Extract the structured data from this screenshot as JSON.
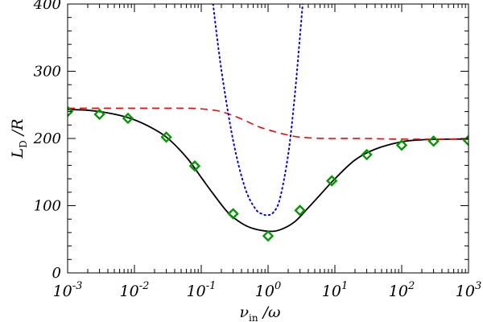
{
  "chart_data": {
    "type": "line",
    "x_scale": "log",
    "xlim": [
      0.001,
      1000
    ],
    "ylim": [
      0,
      400
    ],
    "x_ticks": [
      0.001,
      0.01,
      0.1,
      1,
      10,
      100,
      1000
    ],
    "x_tick_labels": [
      {
        "base": "10",
        "exp": "-3"
      },
      {
        "base": "10",
        "exp": "-2"
      },
      {
        "base": "10",
        "exp": "-1"
      },
      {
        "base": "10",
        "exp": "0"
      },
      {
        "base": "10",
        "exp": "1"
      },
      {
        "base": "10",
        "exp": "2"
      },
      {
        "base": "10",
        "exp": "3"
      }
    ],
    "y_ticks": [
      0,
      100,
      200,
      300,
      400
    ],
    "y_tick_labels": [
      "0",
      "100",
      "200",
      "300",
      "400"
    ],
    "xlabel": {
      "main": "ν",
      "sub": "in",
      "rest": " /ω"
    },
    "ylabel": {
      "main": "L",
      "sub": "D",
      "rest": " /R"
    },
    "grid": false,
    "series": [
      {
        "style": "solid",
        "color": "#000000",
        "x": [
          0.001,
          0.002,
          0.004,
          0.008,
          0.015,
          0.03,
          0.06,
          0.1,
          0.15,
          0.25,
          0.4,
          0.6,
          1,
          1.5,
          2.5,
          4,
          6,
          10,
          20,
          40,
          100,
          200,
          500,
          1000
        ],
        "y": [
          243,
          242,
          238,
          231,
          220,
          202,
          172,
          142,
          118,
          90,
          74,
          66,
          62,
          64,
          76,
          97,
          116,
          140,
          168,
          184,
          195,
          198,
          199,
          199
        ]
      },
      {
        "style": "dashed",
        "color": "#ff0000",
        "x": [
          0.001,
          0.003,
          0.01,
          0.03,
          0.06,
          0.1,
          0.2,
          0.4,
          0.7,
          1,
          1.5,
          2.5,
          4,
          7,
          10,
          30,
          100,
          1000
        ],
        "y": [
          245,
          245,
          245,
          245,
          245,
          244,
          240,
          229,
          218,
          213,
          208,
          203,
          201,
          200,
          200,
          200,
          199,
          199
        ]
      },
      {
        "style": "dotted",
        "color": "#0000ff",
        "x": [
          0.15,
          0.2,
          0.3,
          0.45,
          0.65,
          0.85,
          1,
          1.2,
          1.5,
          2,
          2.5,
          3,
          3.5
        ],
        "y": [
          400,
          302,
          197,
          127,
          95,
          87,
          86,
          90,
          110,
          176,
          262,
          352,
          430
        ]
      },
      {
        "style": "markers",
        "marker": "diamond",
        "color": "#009900",
        "x": [
          0.001,
          0.003,
          0.008,
          0.03,
          0.08,
          0.3,
          1,
          3,
          9,
          30,
          100,
          300,
          1000
        ],
        "y": [
          240,
          236,
          230,
          202,
          159,
          88,
          55,
          93,
          137,
          176,
          190,
          196,
          197
        ]
      }
    ]
  }
}
